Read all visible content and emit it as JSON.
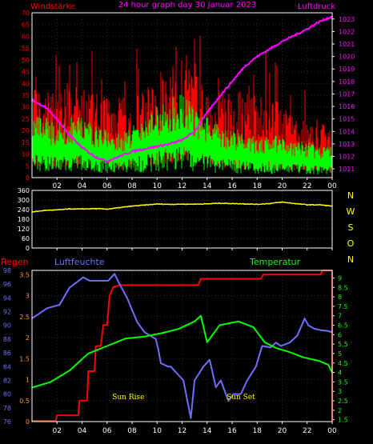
{
  "colors": {
    "red": "#ff0000",
    "green": "#00ff00",
    "magenta": "#ff00ff",
    "yellow": "#ffff00",
    "blue": "#6f6fff",
    "orange": "#ff9900",
    "grid": "#2a2a2a",
    "axis": "#ffffff"
  },
  "chart_data": [
    {
      "type": "line",
      "title": "24 hour graph day  30 Januar 2023",
      "left_label": "Windstärke",
      "right_label": "Luftdruck",
      "x_ticks": [
        "02",
        "04",
        "06",
        "08",
        "10",
        "12",
        "14",
        "16",
        "18",
        "20",
        "22",
        "00"
      ],
      "y_left_ticks": [
        0,
        5,
        10,
        15,
        20,
        25,
        30,
        35,
        40,
        45,
        50,
        55,
        60,
        65,
        70
      ],
      "y_right_ticks": [
        1011,
        1012,
        1013,
        1014,
        1015,
        1016,
        1017,
        1018,
        1019,
        1020,
        1021,
        1022,
        1023
      ],
      "ylim_left": [
        0,
        70
      ],
      "ylim_right": [
        1010.3,
        1023.5
      ],
      "grid": true,
      "series": [
        {
          "name": "gust",
          "color": "#ff0000",
          "axis": "left",
          "x": [
            0,
            1,
            2,
            3,
            4,
            5,
            6,
            7,
            8,
            9,
            10,
            11,
            12,
            13,
            14,
            15,
            16,
            17,
            18,
            19,
            20,
            21,
            22,
            23,
            24
          ],
          "values": [
            38,
            31,
            28,
            35,
            31,
            29,
            30,
            27,
            29,
            31,
            32,
            38,
            41,
            36,
            30,
            30,
            30,
            29,
            28,
            30,
            25,
            22,
            21,
            20,
            16
          ]
        },
        {
          "name": "wind",
          "color": "#00ff00",
          "axis": "left",
          "x": [
            0,
            1,
            2,
            3,
            4,
            5,
            6,
            7,
            8,
            9,
            10,
            11,
            12,
            13,
            14,
            15,
            16,
            17,
            18,
            19,
            20,
            21,
            22,
            23,
            24
          ],
          "values": [
            16,
            15,
            14,
            15,
            16,
            13,
            12,
            11,
            13,
            15,
            18,
            20,
            22,
            18,
            15,
            13,
            12,
            11,
            10,
            11,
            10,
            9,
            9,
            8,
            8
          ]
        },
        {
          "name": "pressure",
          "color": "#ff00ff",
          "axis": "right",
          "x": [
            0,
            1,
            2,
            3,
            4,
            5,
            6,
            7,
            8,
            9,
            10,
            11,
            12,
            13,
            14,
            15,
            16,
            17,
            18,
            19,
            20,
            21,
            22,
            23,
            24
          ],
          "values": [
            1016.5,
            1016.0,
            1015.0,
            1013.7,
            1012.7,
            1012.0,
            1011.6,
            1012.0,
            1012.4,
            1012.6,
            1012.8,
            1013.0,
            1013.3,
            1014.0,
            1015.5,
            1016.8,
            1018.0,
            1019.2,
            1020.0,
            1020.6,
            1021.2,
            1021.7,
            1022.2,
            1022.8,
            1023.2
          ]
        }
      ]
    },
    {
      "type": "line",
      "y_left_ticks": [
        0,
        60,
        120,
        180,
        240,
        300,
        360
      ],
      "ylim": [
        0,
        360
      ],
      "right_labels": [
        "N",
        "W",
        "S",
        "O",
        "N"
      ],
      "series": [
        {
          "name": "direction",
          "color": "#ffff00",
          "x": [
            0,
            1,
            2,
            3,
            4,
            5,
            6,
            7,
            8,
            9,
            10,
            11,
            12,
            13,
            14,
            15,
            16,
            17,
            18,
            19,
            20,
            21,
            22,
            23,
            24
          ],
          "values": [
            225,
            235,
            238,
            244,
            244,
            246,
            243,
            252,
            262,
            268,
            275,
            273,
            274,
            274,
            276,
            280,
            278,
            276,
            273,
            278,
            287,
            278,
            270,
            270,
            262
          ]
        }
      ]
    },
    {
      "type": "line",
      "left_label": "Regen",
      "humidity_label": "Luftfeuchte",
      "right_label": "Temperatur",
      "annotations": [
        {
          "text": "Sun Rise",
          "x": 7.7
        },
        {
          "text": "Sun Set",
          "x": 16.7
        }
      ],
      "y_left_outer_ticks": [
        76,
        78,
        80,
        82,
        84,
        86,
        88,
        90,
        92,
        94,
        96,
        98
      ],
      "y_left_inner_ticks": [
        0,
        0.5,
        1,
        1.5,
        2,
        2.5,
        3,
        3.5
      ],
      "y_right_ticks": [
        1.5,
        2,
        2.5,
        3,
        3.5,
        4,
        4.5,
        5,
        5.5,
        6,
        6.5,
        7,
        7.5,
        8,
        8.5,
        9
      ],
      "ylim_humidity": [
        76,
        98
      ],
      "ylim_rain": [
        0,
        3.6
      ],
      "ylim_temp": [
        1.4,
        9.4
      ],
      "series": [
        {
          "name": "humidity",
          "color": "#6f6fff",
          "x": [
            0,
            0.4,
            1.2,
            2.2,
            3.0,
            4.1,
            4.6,
            6.1,
            6.6,
            7.0,
            7.6,
            8.4,
            9.0,
            9.9,
            10.1,
            10.3,
            10.9,
            11.1,
            12.1,
            12.7,
            13.0,
            13.7,
            14.2,
            14.7,
            15.1,
            15.7,
            16.1,
            16.7,
            17.2,
            17.9,
            18.4,
            19.1,
            19.5,
            19.9,
            20.6,
            21.2,
            21.8,
            22.1,
            22.6,
            23.1,
            23.6,
            24.0
          ],
          "values": [
            91,
            91.5,
            92.5,
            93,
            95.5,
            97,
            96.5,
            96.5,
            97.5,
            96,
            94,
            90.5,
            89,
            88,
            86.5,
            84.5,
            84,
            84,
            82,
            76.5,
            82,
            84,
            85,
            81,
            82,
            79,
            80,
            80,
            82,
            84,
            87,
            86.8,
            87.5,
            87,
            87.5,
            88.5,
            91,
            90,
            89.5,
            89.3,
            89.2,
            89
          ]
        },
        {
          "name": "rain",
          "color": "#ff0000",
          "x": [
            0,
            1.9,
            2.0,
            3.7,
            3.8,
            4.4,
            4.5,
            5.0,
            5.1,
            5.5,
            5.7,
            6.0,
            6.2,
            6.5,
            7.0,
            13.3,
            13.5,
            18.3,
            18.5,
            23.1,
            23.2,
            24.0,
            24.01
          ],
          "values": [
            0.02,
            0.02,
            0.15,
            0.15,
            0.5,
            0.5,
            1.2,
            1.2,
            1.8,
            1.8,
            2.3,
            2.3,
            3.0,
            3.2,
            3.25,
            3.25,
            3.4,
            3.4,
            3.5,
            3.5,
            3.6,
            3.6,
            0
          ]
        },
        {
          "name": "temperature",
          "color": "#00ff00",
          "x": [
            0,
            1.5,
            3,
            4.5,
            6,
            7.5,
            9,
            10.5,
            11.7,
            13,
            13.5,
            14,
            15.0,
            16.5,
            17.7,
            18.6,
            19.5,
            20.5,
            21.7,
            23,
            23.7,
            24
          ],
          "values": [
            3.2,
            3.5,
            4.1,
            5.0,
            5.4,
            5.8,
            5.9,
            6.1,
            6.3,
            6.7,
            7.0,
            5.6,
            6.5,
            6.7,
            6.4,
            5.6,
            5.3,
            5.1,
            4.8,
            4.6,
            4.4,
            4.0
          ]
        }
      ]
    }
  ]
}
